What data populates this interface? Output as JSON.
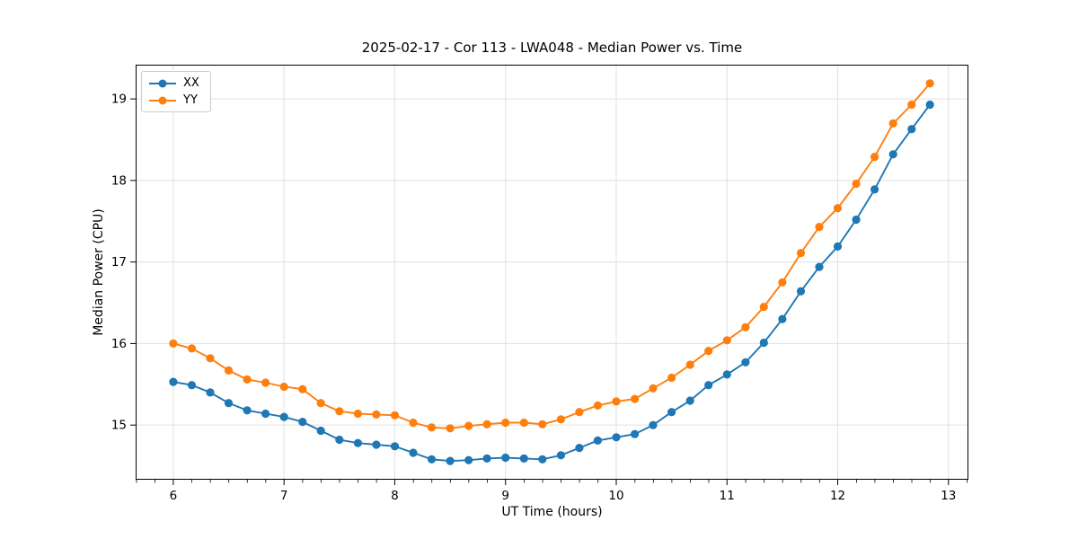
{
  "chart_data": {
    "type": "line",
    "title": "2025-02-17 - Cor 113 - LWA048 - Median Power vs. Time",
    "xlabel": "UT Time (hours)",
    "ylabel": "Median Power (CPU)",
    "xlim": [
      5.66,
      13.18
    ],
    "ylim": [
      14.33,
      19.42
    ],
    "x_ticks": [
      6,
      7,
      8,
      9,
      10,
      11,
      12,
      13
    ],
    "y_ticks": [
      15,
      16,
      17,
      18,
      19
    ],
    "x_minor_tick_step": 0.1667,
    "grid": true,
    "background": "#ffffff",
    "grid_color": "#e0e0e0",
    "legend_position": "upper-left",
    "marker": "circle",
    "x": [
      6.0,
      6.167,
      6.333,
      6.5,
      6.667,
      6.833,
      7.0,
      7.167,
      7.333,
      7.5,
      7.667,
      7.833,
      8.0,
      8.167,
      8.333,
      8.5,
      8.667,
      8.833,
      9.0,
      9.167,
      9.333,
      9.5,
      9.667,
      9.833,
      10.0,
      10.167,
      10.333,
      10.5,
      10.667,
      10.833,
      11.0,
      11.167,
      11.333,
      11.5,
      11.667,
      11.833,
      12.0,
      12.167,
      12.333,
      12.5,
      12.667,
      12.833
    ],
    "series": [
      {
        "name": "XX",
        "color": "#1f77b4",
        "values": [
          15.53,
          15.49,
          15.4,
          15.27,
          15.18,
          15.14,
          15.1,
          15.04,
          14.93,
          14.82,
          14.78,
          14.76,
          14.74,
          14.66,
          14.58,
          14.56,
          14.57,
          14.59,
          14.6,
          14.59,
          14.58,
          14.63,
          14.72,
          14.81,
          14.85,
          14.89,
          15.0,
          15.16,
          15.3,
          15.49,
          15.62,
          15.77,
          16.01,
          16.3,
          16.64,
          16.94,
          17.19,
          17.52,
          17.89,
          18.32,
          18.63,
          18.93
        ]
      },
      {
        "name": "YY",
        "color": "#ff7f0e",
        "values": [
          16.0,
          15.94,
          15.82,
          15.67,
          15.56,
          15.52,
          15.47,
          15.44,
          15.27,
          15.17,
          15.14,
          15.13,
          15.12,
          15.03,
          14.97,
          14.96,
          14.99,
          15.01,
          15.03,
          15.03,
          15.01,
          15.07,
          15.16,
          15.24,
          15.29,
          15.32,
          15.45,
          15.58,
          15.74,
          15.91,
          16.04,
          16.2,
          16.45,
          16.75,
          17.11,
          17.43,
          17.66,
          17.96,
          18.29,
          18.7,
          18.93,
          19.19
        ]
      }
    ]
  }
}
